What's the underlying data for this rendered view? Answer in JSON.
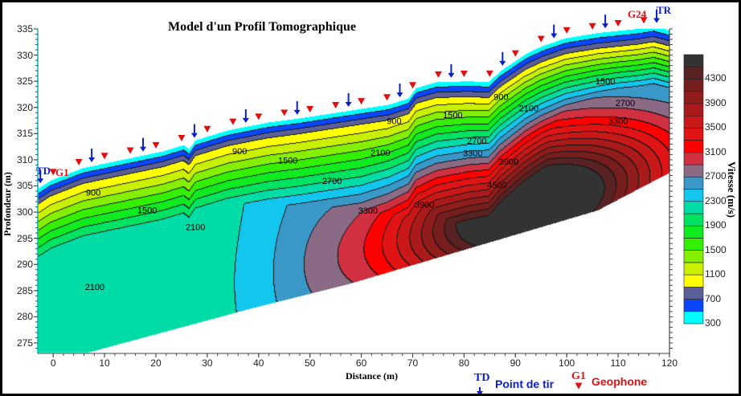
{
  "chart_data": {
    "type": "heatmap",
    "subtype": "filled-contour",
    "title": "Model d'un Profil Tomographique",
    "xlabel": "Distance (m)",
    "ylabel": "Profondeur (m)",
    "colorbar_label": "Vitesse (m/s)",
    "xlim": [
      -3,
      120
    ],
    "ylim": [
      273,
      335
    ],
    "xticks": [
      0,
      10,
      20,
      30,
      40,
      50,
      60,
      70,
      80,
      90,
      100,
      110,
      120
    ],
    "yticks": [
      275,
      280,
      285,
      290,
      295,
      300,
      305,
      310,
      315,
      320,
      325,
      330,
      335
    ],
    "contour_levels": [
      300,
      500,
      700,
      900,
      1100,
      1300,
      1500,
      1700,
      1900,
      2100,
      2300,
      2500,
      2700,
      2900,
      3100,
      3300,
      3500,
      3700,
      3900,
      4100,
      4300,
      4500
    ],
    "colorbar_ticks": [
      300,
      700,
      1100,
      1500,
      1900,
      2300,
      2700,
      3100,
      3500,
      3900,
      4300
    ],
    "band_colors": [
      "#00ffff",
      "#0a46ff",
      "#5b5f98",
      "#ffff00",
      "#c8f000",
      "#84f000",
      "#34f000",
      "#10ea20",
      "#00e262",
      "#00dca6",
      "#12c6ee",
      "#3a98c8",
      "#8a6a85",
      "#d03040",
      "#ff0000",
      "#e01414",
      "#c81818",
      "#aa1a1a",
      "#901c1c",
      "#761e1e",
      "#582222",
      "#333333"
    ],
    "surface_topography": [
      [
        -3,
        304.4
      ],
      [
        -0.5,
        306
      ],
      [
        5.8,
        308.4
      ],
      [
        13.6,
        310
      ],
      [
        21.4,
        311.6
      ],
      [
        25.4,
        312.8
      ],
      [
        26.5,
        312
      ],
      [
        27.7,
        313.7
      ],
      [
        34,
        315.6
      ],
      [
        41.8,
        317.1
      ],
      [
        48,
        317.9
      ],
      [
        55.9,
        319.1
      ],
      [
        65.3,
        320.5
      ],
      [
        69.2,
        321.7
      ],
      [
        70.7,
        323.7
      ],
      [
        74.6,
        324.8
      ],
      [
        81,
        325
      ],
      [
        84.8,
        324.8
      ],
      [
        87.2,
        327
      ],
      [
        91.9,
        330.1
      ],
      [
        95,
        331.6
      ],
      [
        99.7,
        333.2
      ],
      [
        106,
        334.2
      ],
      [
        113.8,
        335
      ],
      [
        117,
        335.5
      ],
      [
        120,
        334.7
      ]
    ],
    "model_base": [
      [
        -3,
        273.1
      ],
      [
        6.6,
        273.1
      ],
      [
        37.9,
        281.4
      ],
      [
        57.4,
        286.2
      ],
      [
        106,
        300.3
      ],
      [
        120,
        307.5
      ]
    ],
    "contour_labels": [
      {
        "text": "900",
        "x": 7.8,
        "y": 303.8
      },
      {
        "text": "1500",
        "x": 18.3,
        "y": 300.4
      },
      {
        "text": "2100",
        "x": 27.7,
        "y": 297.2
      },
      {
        "text": "2100",
        "x": 8.1,
        "y": 285.7
      },
      {
        "text": "900",
        "x": 36.3,
        "y": 311.7
      },
      {
        "text": "1500",
        "x": 45.7,
        "y": 309.9
      },
      {
        "text": "2700",
        "x": 54.3,
        "y": 306
      },
      {
        "text": "2100",
        "x": 63.7,
        "y": 311.4
      },
      {
        "text": "900",
        "x": 66.4,
        "y": 317.4
      },
      {
        "text": "1500",
        "x": 77.8,
        "y": 318.6
      },
      {
        "text": "900",
        "x": 87.2,
        "y": 322
      },
      {
        "text": "2100",
        "x": 92.6,
        "y": 319.9
      },
      {
        "text": "1500",
        "x": 107.5,
        "y": 325
      },
      {
        "text": "2700",
        "x": 111.4,
        "y": 320.9
      },
      {
        "text": "3300",
        "x": 110,
        "y": 317.4
      },
      {
        "text": "2700",
        "x": 82.5,
        "y": 313.7
      },
      {
        "text": "3300",
        "x": 81.7,
        "y": 311.3
      },
      {
        "text": "3900",
        "x": 88.7,
        "y": 309.7
      },
      {
        "text": "4500",
        "x": 86.4,
        "y": 305.2
      },
      {
        "text": "3900",
        "x": 72.3,
        "y": 301.5
      },
      {
        "text": "3300",
        "x": 61.3,
        "y": 300.3
      }
    ],
    "geophones_x": [
      0,
      5,
      10,
      15,
      20,
      25,
      30,
      35,
      40,
      45,
      50,
      55,
      60,
      65,
      70,
      75,
      80,
      85,
      90,
      95,
      100,
      105,
      110,
      115
    ],
    "shots_x": [
      -2.5,
      7.5,
      17.5,
      27.5,
      37.5,
      47.5,
      57.5,
      67.5,
      77.5,
      87.5,
      97.5,
      107.5,
      117.5
    ],
    "marker_labels": {
      "first_shot": "TD",
      "last_shot": "TR",
      "first_geophone": "G1",
      "last_geophone": "G24"
    }
  },
  "legend": {
    "shot_symbol_label": "TD",
    "shot_text": "Point de tir",
    "geophone_symbol_label": "G1",
    "geophone_text": "Geophone",
    "shot_color": "#0a1ecc",
    "geophone_color": "#e01010"
  }
}
